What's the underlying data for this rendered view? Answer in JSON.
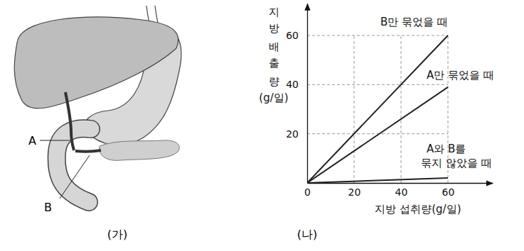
{
  "diagram": {
    "caption": "(가)",
    "labels": [
      "A",
      "B"
    ]
  },
  "chart_data": {
    "type": "line",
    "caption": "(나)",
    "x_label": "지방 섭취량(g/일)",
    "y_label": "지방 배출량(g/일)",
    "x": [
      0,
      60
    ],
    "series": [
      {
        "name": "B만 묶었을 때",
        "color": "#222222",
        "values": [
          0,
          60
        ]
      },
      {
        "name": "A만 묶었을 때",
        "color": "#222222",
        "values": [
          0,
          39
        ]
      },
      {
        "name": "A와 B를\n묶지 않았을 때",
        "color": "#222222",
        "values": [
          0,
          2
        ]
      }
    ],
    "xlim": [
      0,
      79
    ],
    "ylim": [
      0,
      73
    ],
    "xticks": [
      0,
      20,
      40,
      60
    ],
    "yticks": [
      20,
      40,
      60
    ],
    "grid": true
  }
}
